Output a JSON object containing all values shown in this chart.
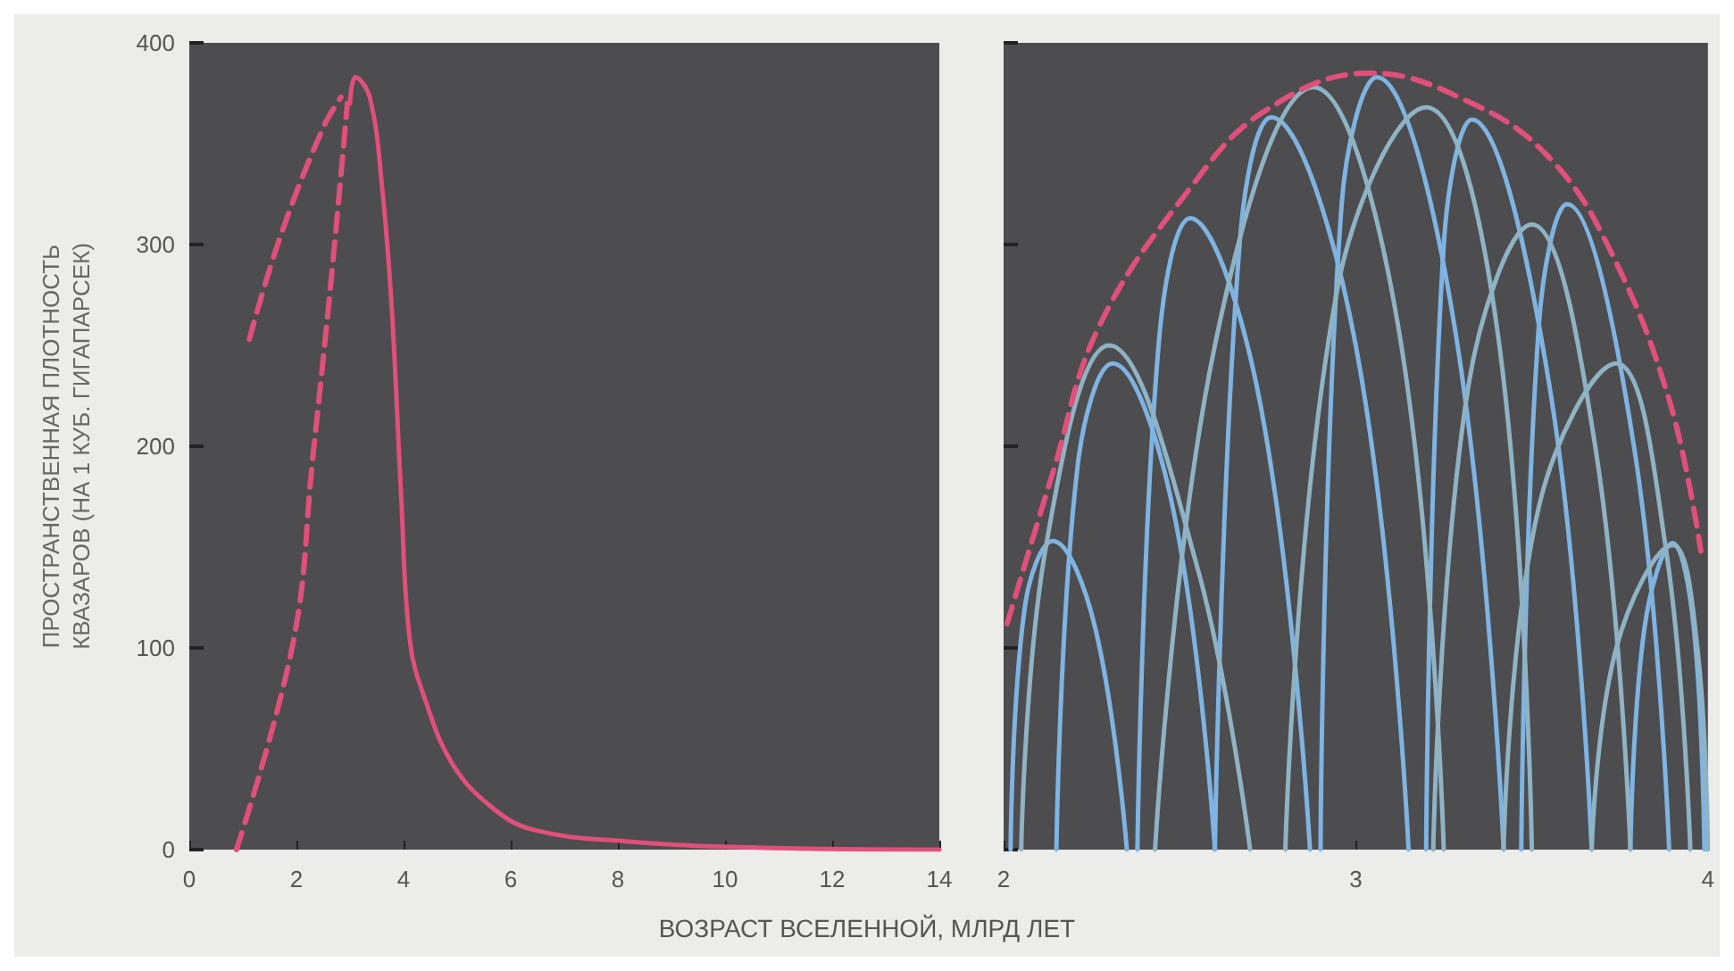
{
  "chart_data": [
    {
      "type": "line",
      "xlabel": "ВОЗРАСТ ВСЕЛЕННОЙ, МЛРД ЛЕТ",
      "ylabel": "ПРОСТРАНСТВЕННАЯ ПЛОТНОСТЬ\nКВАЗАРОВ (НА 1 КУБ. ГИГАПАРСЕК)",
      "xlim": [
        0,
        14
      ],
      "xticks": [
        0,
        2,
        4,
        6,
        8,
        10,
        12,
        14
      ],
      "ylim": [
        0,
        400
      ],
      "yticks": [
        0,
        100,
        200,
        300,
        400
      ],
      "grid": false,
      "marker": "none",
      "series": [
        {
          "color": "#e0507a",
          "line_style": "solid",
          "x": [
            3.0,
            3.1,
            3.37,
            3.6,
            3.78,
            3.95,
            4.12,
            4.42,
            4.9,
            5.6,
            6.4,
            8.2,
            10.6,
            14
          ],
          "values": [
            370,
            383,
            373,
            328,
            268,
            178,
            103,
            73,
            43,
            22,
            10,
            4,
            1,
            0
          ]
        },
        {
          "color": "#e0507a",
          "line_style": "dashed",
          "x": [
            0.88,
            1.94,
            2.3,
            2.65,
            2.95
          ],
          "values": [
            0,
            103,
            193,
            283,
            370
          ]
        },
        {
          "color": "#e0507a",
          "line_style": "dashed",
          "x": [
            1.12,
            1.7,
            2.5,
            2.83
          ],
          "values": [
            253,
            304,
            358,
            373
          ]
        }
      ]
    },
    {
      "type": "line",
      "xlim": [
        2,
        4
      ],
      "xticks": [
        2,
        3,
        4
      ],
      "ylim": [
        0,
        400
      ],
      "yticks": [
        0,
        100,
        200,
        300,
        400
      ],
      "tick_labels": "x",
      "grid": false,
      "marker": "none",
      "series": [
        {
          "color": "#7fb4e2",
          "line_style": "solid",
          "x": [
            2.02,
            2.06,
            2.14,
            2.26,
            2.35
          ],
          "values": [
            0,
            120,
            153,
            110,
            0
          ]
        },
        {
          "color": "#7fb4e2",
          "line_style": "solid",
          "x": [
            2.15,
            2.21,
            2.31,
            2.48,
            2.6
          ],
          "values": [
            0,
            190,
            241,
            170,
            0
          ]
        },
        {
          "color": "#7fb4e2",
          "line_style": "solid",
          "x": [
            2.38,
            2.44,
            2.53,
            2.73,
            2.87
          ],
          "values": [
            0,
            250,
            313,
            220,
            0
          ]
        },
        {
          "color": "#7fb4e2",
          "line_style": "solid",
          "x": [
            2.6,
            2.67,
            2.76,
            3.0,
            3.15
          ],
          "values": [
            0,
            300,
            363,
            250,
            0
          ]
        },
        {
          "color": "#7fb4e2",
          "line_style": "solid",
          "x": [
            2.9,
            2.96,
            3.06,
            3.28,
            3.42
          ],
          "values": [
            0,
            320,
            383,
            260,
            0
          ]
        },
        {
          "color": "#7fb4e2",
          "line_style": "solid",
          "x": [
            3.2,
            3.25,
            3.33,
            3.55,
            3.67
          ],
          "values": [
            0,
            300,
            362,
            230,
            0
          ]
        },
        {
          "color": "#7fb4e2",
          "line_style": "solid",
          "x": [
            3.47,
            3.52,
            3.6,
            3.79,
            3.89
          ],
          "values": [
            0,
            260,
            320,
            200,
            0
          ]
        },
        {
          "color": "#7fb4e2",
          "line_style": "solid",
          "x": [
            3.78,
            3.82,
            3.9,
            3.96,
            3.99
          ],
          "values": [
            0,
            110,
            152,
            110,
            0
          ]
        },
        {
          "color": "#8fb3c4",
          "line_style": "solid",
          "x": [
            2.05,
            2.12,
            2.3,
            2.55,
            2.7
          ],
          "values": [
            0,
            150,
            250,
            140,
            0
          ]
        },
        {
          "color": "#8fb3c4",
          "line_style": "solid",
          "x": [
            2.43,
            2.6,
            2.88,
            3.12,
            3.25
          ],
          "values": [
            0,
            250,
            378,
            260,
            0
          ]
        },
        {
          "color": "#8fb3c4",
          "line_style": "solid",
          "x": [
            2.8,
            2.95,
            3.2,
            3.4,
            3.5
          ],
          "values": [
            0,
            280,
            368,
            260,
            0
          ]
        },
        {
          "color": "#8fb3c4",
          "line_style": "solid",
          "x": [
            3.22,
            3.32,
            3.5,
            3.68,
            3.78
          ],
          "values": [
            0,
            230,
            310,
            200,
            0
          ]
        },
        {
          "color": "#8fb3c4",
          "line_style": "solid",
          "x": [
            3.42,
            3.52,
            3.74,
            3.88,
            3.95
          ],
          "values": [
            0,
            170,
            241,
            150,
            0
          ]
        },
        {
          "color": "#8fb3c4",
          "line_style": "solid",
          "x": [
            3.67,
            3.74,
            3.9,
            3.97,
            4.0
          ],
          "values": [
            0,
            100,
            151,
            100,
            0
          ]
        },
        {
          "color": "#e0507a",
          "line_style": "dashed",
          "x": [
            2.01,
            2.14,
            2.27,
            2.53,
            2.74,
            3.04,
            3.33,
            3.55,
            3.72,
            3.89,
            3.98
          ],
          "values": [
            112,
            187,
            259,
            328,
            366,
            385,
            370,
            343,
            298,
            223,
            148
          ]
        }
      ]
    }
  ]
}
